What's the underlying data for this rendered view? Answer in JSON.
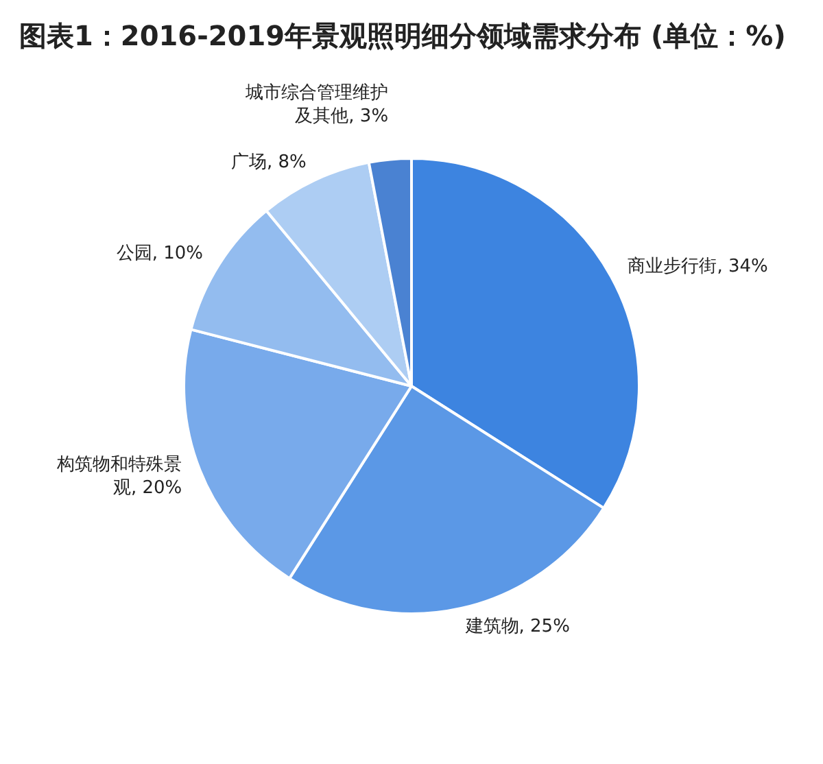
{
  "chart_data": {
    "type": "pie",
    "title": "图表1：2016-2019年景观照明细分领域需求分布 (单位：%)",
    "categories": [
      "商业步行街",
      "建筑物",
      "构筑物和特殊景观",
      "公园",
      "广场",
      "城市综合管理维护及其他"
    ],
    "values": [
      34,
      25,
      20,
      10,
      8,
      3
    ],
    "value_labels": [
      "34%",
      "25%",
      "20%",
      "10%",
      "8%",
      "3%"
    ],
    "colors": [
      "#3d84e0",
      "#5b98e6",
      "#78aaeb",
      "#93bcef",
      "#adcdf3",
      "#4a82d2"
    ],
    "legend": false
  }
}
